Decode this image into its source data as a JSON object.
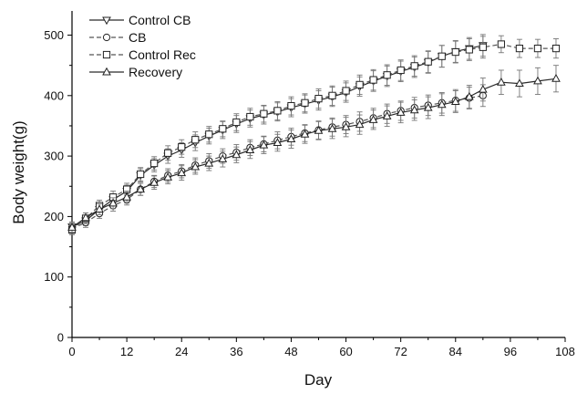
{
  "chart_data": {
    "type": "line",
    "xlabel": "Day",
    "ylabel": "Body weight(g)",
    "xlim": [
      0,
      108
    ],
    "ylim": [
      0,
      540
    ],
    "xticks": [
      0,
      12,
      24,
      36,
      48,
      60,
      72,
      84,
      96,
      108
    ],
    "yticks": [
      0,
      100,
      200,
      300,
      400,
      500
    ],
    "grid": false,
    "legend_position": "top-left",
    "series": [
      {
        "name": "Control CB",
        "marker": "triangle-down",
        "dash": "solid",
        "x": [
          0,
          3,
          6,
          9,
          12,
          15,
          18,
          21,
          24,
          27,
          30,
          33,
          36,
          39,
          42,
          45,
          48,
          51,
          54,
          57,
          60,
          63,
          66,
          69,
          72,
          75,
          78,
          81,
          84,
          87,
          90
        ],
        "y": [
          183,
          193,
          212,
          228,
          242,
          268,
          285,
          300,
          310,
          322,
          333,
          343,
          353,
          362,
          368,
          373,
          380,
          386,
          392,
          398,
          405,
          415,
          424,
          432,
          440,
          447,
          455,
          465,
          473,
          478,
          483
        ],
        "err": [
          8,
          8,
          8,
          9,
          10,
          11,
          11,
          12,
          12,
          13,
          13,
          14,
          14,
          14,
          15,
          15,
          15,
          15,
          16,
          16,
          16,
          16,
          17,
          17,
          17,
          17,
          18,
          18,
          18,
          18,
          18
        ]
      },
      {
        "name": "CB",
        "marker": "circle",
        "dash": "dashed",
        "x": [
          0,
          3,
          6,
          9,
          12,
          15,
          18,
          21,
          24,
          27,
          30,
          33,
          36,
          39,
          42,
          45,
          48,
          51,
          54,
          57,
          60,
          63,
          66,
          69,
          72,
          75,
          78,
          81,
          84,
          87,
          90
        ],
        "y": [
          180,
          190,
          205,
          218,
          228,
          245,
          258,
          268,
          275,
          285,
          292,
          300,
          306,
          314,
          320,
          326,
          332,
          338,
          343,
          348,
          352,
          357,
          363,
          370,
          375,
          380,
          384,
          388,
          392,
          396,
          400
        ],
        "err": [
          8,
          8,
          8,
          9,
          9,
          10,
          10,
          11,
          11,
          12,
          12,
          12,
          13,
          13,
          13,
          14,
          14,
          14,
          15,
          15,
          15,
          16,
          16,
          16,
          16,
          17,
          17,
          17,
          18,
          18,
          18
        ]
      },
      {
        "name": "Control Rec",
        "marker": "square",
        "dash": "dashed",
        "x": [
          0,
          3,
          6,
          9,
          12,
          15,
          18,
          21,
          24,
          27,
          30,
          33,
          36,
          39,
          42,
          45,
          48,
          51,
          54,
          57,
          60,
          63,
          66,
          69,
          72,
          75,
          78,
          81,
          84,
          87,
          90,
          94,
          98,
          102,
          106
        ],
        "y": [
          178,
          197,
          218,
          232,
          245,
          270,
          288,
          305,
          315,
          327,
          336,
          345,
          356,
          365,
          370,
          375,
          383,
          388,
          395,
          400,
          408,
          418,
          426,
          434,
          442,
          449,
          456,
          465,
          472,
          476,
          480,
          485,
          478,
          478,
          478
        ],
        "err": [
          8,
          9,
          9,
          10,
          10,
          11,
          11,
          12,
          12,
          13,
          13,
          13,
          14,
          14,
          14,
          15,
          15,
          15,
          16,
          16,
          16,
          16,
          17,
          17,
          17,
          17,
          18,
          18,
          18,
          18,
          18,
          14,
          15,
          15,
          16
        ]
      },
      {
        "name": "Recovery",
        "marker": "triangle-up",
        "dash": "solid",
        "x": [
          0,
          3,
          6,
          9,
          12,
          15,
          18,
          21,
          24,
          27,
          30,
          33,
          36,
          39,
          42,
          45,
          48,
          51,
          54,
          57,
          60,
          63,
          66,
          69,
          72,
          75,
          78,
          81,
          84,
          87,
          90,
          94,
          98,
          102,
          106
        ],
        "y": [
          182,
          198,
          212,
          222,
          232,
          245,
          256,
          265,
          272,
          282,
          288,
          295,
          302,
          310,
          318,
          322,
          328,
          336,
          342,
          345,
          348,
          352,
          360,
          366,
          372,
          376,
          380,
          385,
          390,
          398,
          410,
          422,
          420,
          424,
          428
        ],
        "err": [
          8,
          8,
          9,
          9,
          10,
          10,
          11,
          11,
          12,
          12,
          12,
          13,
          13,
          14,
          14,
          14,
          15,
          15,
          15,
          16,
          16,
          16,
          16,
          17,
          17,
          17,
          18,
          18,
          18,
          19,
          19,
          20,
          22,
          22,
          22
        ]
      }
    ]
  }
}
